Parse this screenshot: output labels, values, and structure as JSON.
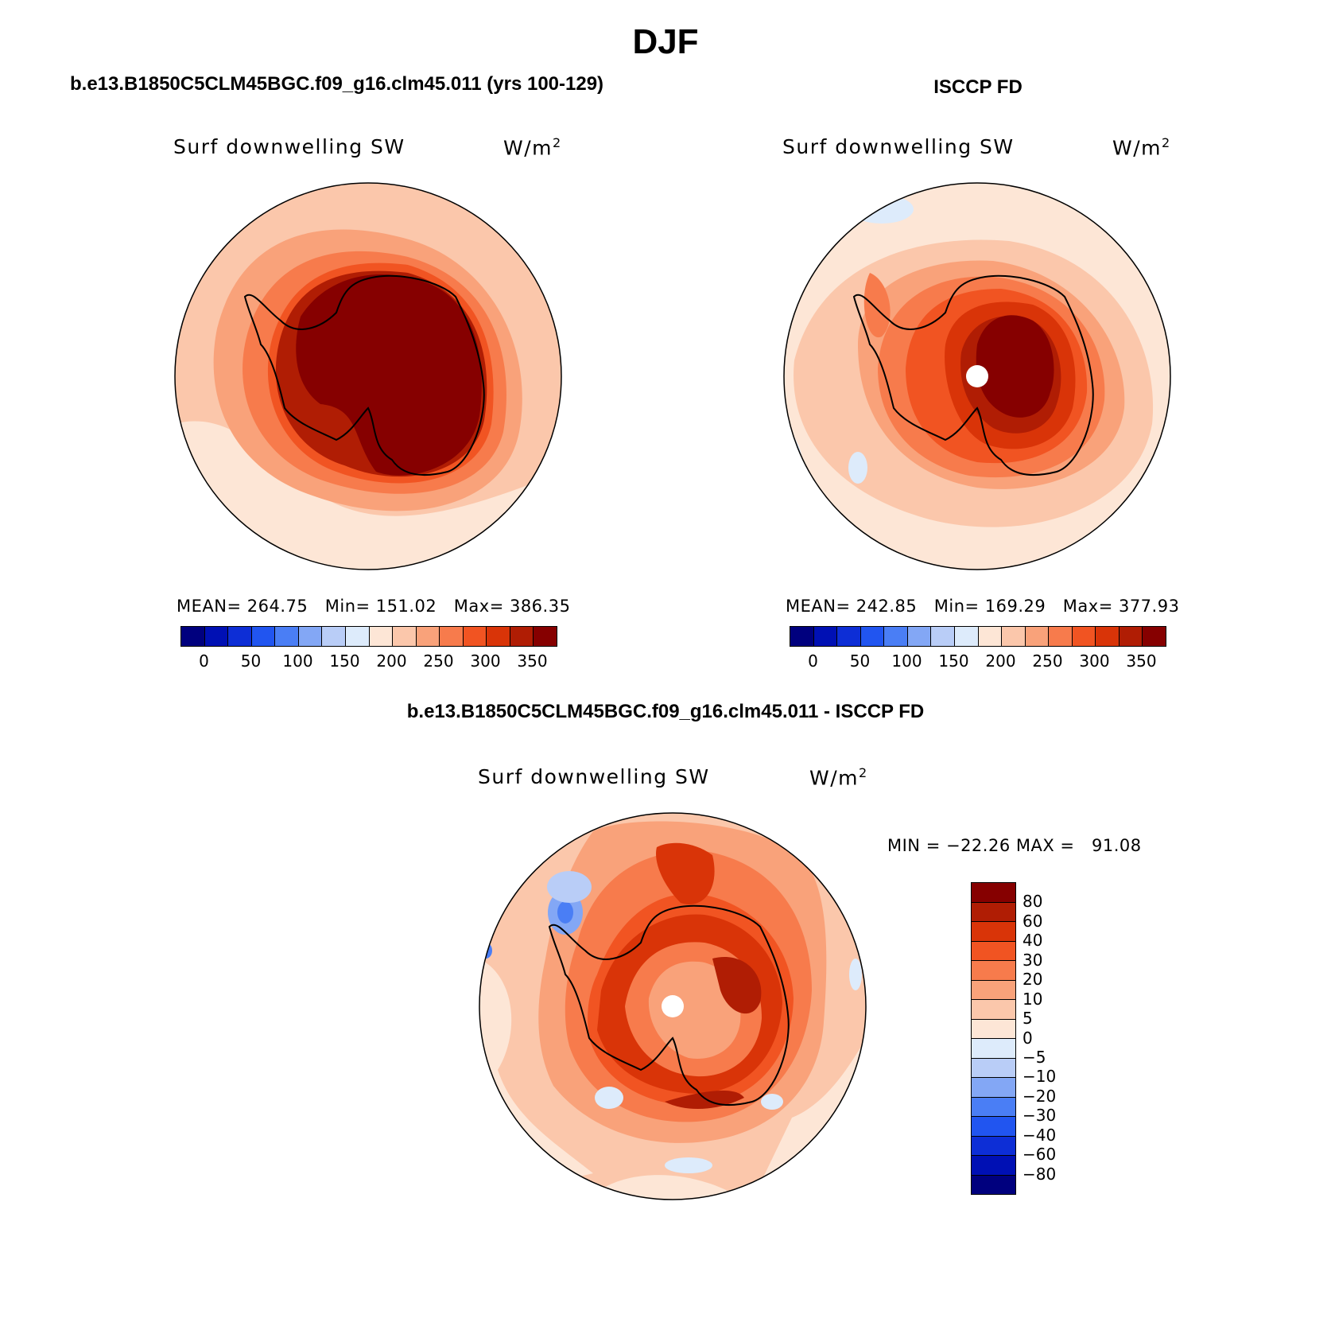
{
  "figure": {
    "title": "DJF",
    "model_title": "b.e13.B1850C5CLM45BGC.f09_g16.clm45.011 (yrs 100-129)",
    "obs_title": "ISCCP FD",
    "diff_title": "b.e13.B1850C5CLM45BGC.f09_g16.clm45.011 - ISCCP FD"
  },
  "panels": {
    "model": {
      "variable": "Surf downwelling SW",
      "units": "W/m",
      "units_sup": "2",
      "stats": "MEAN= 264.75   Min= 151.02   Max= 386.35"
    },
    "obs": {
      "variable": "Surf downwelling SW",
      "units": "W/m",
      "units_sup": "2",
      "stats": "MEAN= 242.85   Min= 169.29   Max= 377.93"
    },
    "diff": {
      "variable": "Surf downwelling SW",
      "units": "W/m",
      "units_sup": "2",
      "stats": "MIN = −22.26 MAX =   91.08"
    }
  },
  "colorbars": {
    "absolute": {
      "colors": [
        "#00007e",
        "#0010b4",
        "#0d2ed6",
        "#2155f0",
        "#4a7ef5",
        "#83a7f5",
        "#b9cdf7",
        "#ddebfb",
        "#fde6d6",
        "#fbc7ab",
        "#f9a27a",
        "#f77b4c",
        "#f15422",
        "#d93408",
        "#b01d04",
        "#860000"
      ],
      "tick_labels": [
        "0",
        "50",
        "100",
        "150",
        "200",
        "250",
        "300",
        "350"
      ]
    },
    "difference": {
      "colors": [
        "#860000",
        "#b01d04",
        "#d93408",
        "#f15422",
        "#f77b4c",
        "#f9a27a",
        "#fbc7ab",
        "#fde6d6",
        "#ddebfb",
        "#b9cdf7",
        "#83a7f5",
        "#4a7ef5",
        "#2155f0",
        "#0d2ed6",
        "#0010b4",
        "#00007e"
      ],
      "tick_labels": [
        "80",
        "60",
        "40",
        "30",
        "20",
        "10",
        "5",
        "0",
        "−5",
        "−10",
        "−20",
        "−30",
        "−40",
        "−60",
        "−80"
      ]
    }
  }
}
